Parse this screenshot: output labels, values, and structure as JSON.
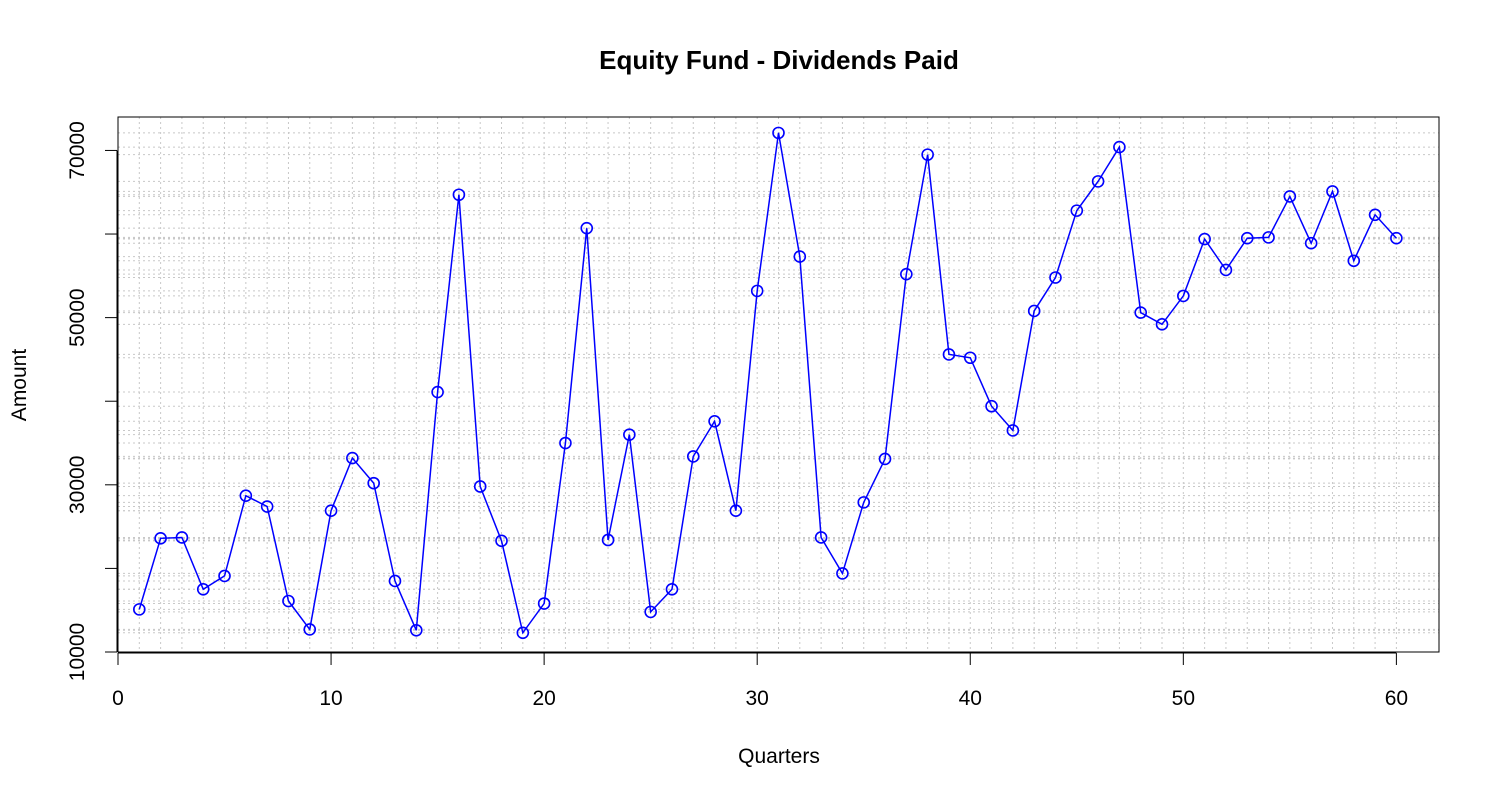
{
  "chart_data": {
    "type": "line",
    "title": "Equity Fund - Dividends Paid",
    "xlabel": "Quarters",
    "ylabel": "Amount",
    "xlim": [
      0,
      62
    ],
    "ylim": [
      10000,
      74000
    ],
    "x_ticks": [
      0,
      10,
      20,
      30,
      40,
      50,
      60
    ],
    "y_ticks": [
      10000,
      30000,
      50000,
      70000
    ],
    "y_minor_ticks": [
      20000,
      40000,
      60000
    ],
    "grid": "on",
    "grid_style": "dotted",
    "colors": {
      "series": "#0000ff",
      "grid": "#c8c8c8",
      "axis": "#000000"
    },
    "marker": "open-circle",
    "series": [
      {
        "x": [
          1,
          2,
          3,
          4,
          5,
          6,
          7,
          8,
          9,
          10,
          11,
          12,
          13,
          14,
          15,
          16,
          17,
          18,
          19,
          20,
          21,
          22,
          23,
          24,
          25,
          26,
          27,
          28,
          29,
          30,
          31,
          32,
          33,
          34,
          35,
          36,
          37,
          38,
          39,
          40,
          41,
          42,
          43,
          44,
          45,
          46,
          47,
          48,
          49,
          50,
          51,
          52,
          53,
          54,
          55,
          56,
          57,
          58,
          59,
          60
        ],
        "values": [
          15100,
          23600,
          23700,
          17500,
          19100,
          28700,
          27400,
          16100,
          12700,
          26900,
          33200,
          30200,
          18500,
          12600,
          41100,
          64700,
          29800,
          23300,
          12300,
          15800,
          35000,
          60700,
          23400,
          36000,
          14800,
          17500,
          33400,
          37600,
          26900,
          53200,
          72100,
          57300,
          23700,
          19400,
          27900,
          33100,
          55200,
          69500,
          45600,
          45200,
          39400,
          36500,
          50800,
          54800,
          62800,
          66300,
          70400,
          50600,
          49200,
          52600,
          59400,
          55700,
          59500,
          59600,
          64500,
          58900,
          65100,
          56800,
          62300,
          59500
        ]
      }
    ]
  }
}
